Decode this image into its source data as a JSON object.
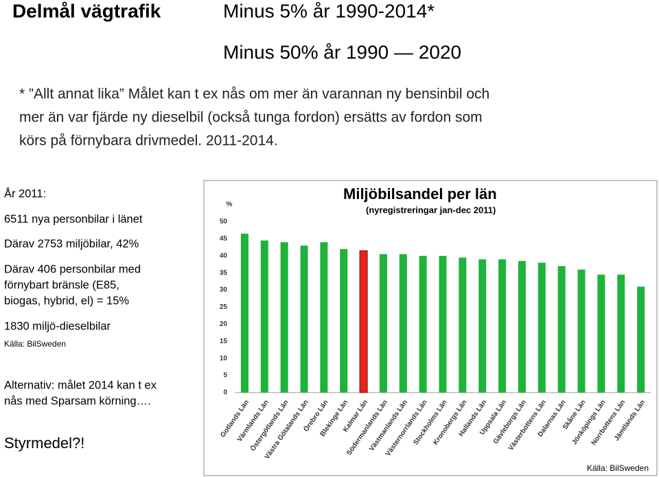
{
  "header": {
    "title": "Delmål vägtrafik",
    "target_2014": "Minus 5% år 1990-2014*",
    "target_2020": "Minus 50% år 1990 — 2020"
  },
  "note": {
    "lines": [
      "* ”Allt annat lika” Målet kan t ex nås om mer än varannan ny bensinbil och",
      "mer än var fjärde ny dieselbil (också tunga fordon) ersätts av fordon som",
      "körs på förnybara drivmedel. 2011-2014."
    ]
  },
  "sidebar": {
    "year": "År 2011:",
    "cars": "6511 nya personbilar i länet",
    "eco_cars": "Därav 2753 miljöbilar, 42%",
    "renewable": [
      "Därav 406 personbilar med",
      "förnybart bränsle (E85,",
      "biogas, hybrid, el) = 15%"
    ],
    "diesel": "1830 miljö-dieselbilar",
    "source": "Källa: BilSweden",
    "alternative": [
      "Alternativ: målet 2014 kan t ex",
      "nås med Sparsam körning…."
    ],
    "question": "Styrmedel?!"
  },
  "chart_data": {
    "type": "bar",
    "title": "Miljöbilsandel per län",
    "subtitle": "(nyregistreringar jan-dec 2011)",
    "y_label": "%",
    "source": "Källa: BilSweden",
    "categories": [
      "Gotlands Län",
      "Värmlands Län",
      "Östergötlands Län",
      "Västra Götalands Län",
      "Örebro Län",
      "Blekinge Län",
      "Kalmar Län",
      "Södermanlands Län",
      "Västmanlands Län",
      "Västernorrlands Län",
      "Stockholms Län",
      "Kronobergs Län",
      "Hallands Län",
      "Uppsala Län",
      "Gävleborgs Län",
      "Västerbottens Län",
      "Dalarnas Län",
      "Skåne Län",
      "Jönköpings Län",
      "Norrbottens Län",
      "Jämtlands Län"
    ],
    "values": [
      46.5,
      44.5,
      44,
      43,
      44,
      42,
      41.5,
      40.5,
      40.5,
      40,
      40,
      39.5,
      39,
      39,
      38.5,
      38,
      37,
      36,
      34.5,
      34.5,
      31
    ],
    "colors": [
      "#1fb33c",
      "#1fb33c",
      "#1fb33c",
      "#1fb33c",
      "#1fb33c",
      "#1fb33c",
      "#e8231c",
      "#1fb33c",
      "#1fb33c",
      "#1fb33c",
      "#1fb33c",
      "#1fb33c",
      "#1fb33c",
      "#1fb33c",
      "#1fb33c",
      "#1fb33c",
      "#1fb33c",
      "#1fb33c",
      "#1fb33c",
      "#1fb33c",
      "#1fb33c"
    ],
    "ylim": [
      0,
      50
    ],
    "yticks": [
      0,
      5,
      10,
      15,
      20,
      25,
      30,
      35,
      40,
      45,
      50
    ],
    "grid": false
  }
}
